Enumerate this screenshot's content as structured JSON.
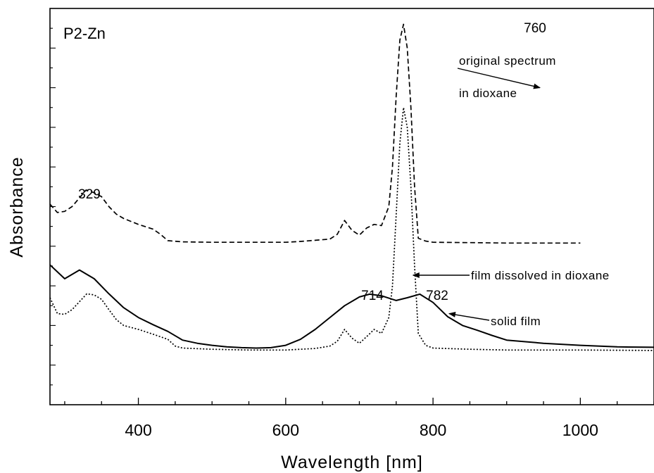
{
  "chart_data": {
    "type": "line",
    "title": "P2-Zn",
    "xlabel": "Wavelength [nm]",
    "ylabel": "Absorbance",
    "xlim": [
      280,
      1100
    ],
    "ylim": [
      0,
      1
    ],
    "x_ticks": [
      400,
      600,
      800,
      1000
    ],
    "x_tick_labels": [
      "400",
      "600",
      "800",
      "1000"
    ],
    "grid": false,
    "legend": "none (curves labeled by annotation arrows)",
    "series": [
      {
        "name": "original spectrum in dioxane",
        "style": "dashed",
        "color": "#000000",
        "x": [
          280,
          290,
          300,
          310,
          320,
          329,
          340,
          350,
          360,
          370,
          380,
          400,
          420,
          430,
          440,
          460,
          500,
          550,
          600,
          620,
          640,
          660,
          670,
          680,
          690,
          700,
          710,
          720,
          730,
          740,
          745,
          750,
          755,
          760,
          765,
          770,
          775,
          780,
          790,
          800,
          850,
          900,
          1000
        ],
        "y": [
          0.506,
          0.485,
          0.488,
          0.5,
          0.522,
          0.542,
          0.535,
          0.525,
          0.5,
          0.481,
          0.47,
          0.455,
          0.443,
          0.43,
          0.414,
          0.411,
          0.41,
          0.41,
          0.41,
          0.412,
          0.415,
          0.418,
          0.43,
          0.465,
          0.44,
          0.428,
          0.446,
          0.455,
          0.452,
          0.5,
          0.6,
          0.78,
          0.92,
          0.96,
          0.9,
          0.75,
          0.55,
          0.42,
          0.413,
          0.41,
          0.409,
          0.408,
          0.408
        ]
      },
      {
        "name": "film dissolved in dioxane",
        "style": "dotted",
        "color": "#000000",
        "x": [
          280,
          290,
          300,
          310,
          320,
          330,
          340,
          350,
          360,
          370,
          380,
          400,
          420,
          440,
          450,
          460,
          500,
          550,
          600,
          620,
          640,
          660,
          670,
          680,
          690,
          700,
          710,
          720,
          730,
          740,
          745,
          750,
          755,
          760,
          765,
          770,
          775,
          780,
          790,
          800,
          850,
          900,
          1000,
          1100
        ],
        "y": [
          0.27,
          0.23,
          0.228,
          0.24,
          0.26,
          0.28,
          0.277,
          0.266,
          0.24,
          0.215,
          0.2,
          0.19,
          0.178,
          0.165,
          0.148,
          0.143,
          0.14,
          0.138,
          0.138,
          0.14,
          0.142,
          0.148,
          0.16,
          0.19,
          0.168,
          0.155,
          0.172,
          0.19,
          0.18,
          0.22,
          0.3,
          0.48,
          0.66,
          0.75,
          0.7,
          0.55,
          0.35,
          0.18,
          0.15,
          0.143,
          0.14,
          0.138,
          0.138,
          0.137
        ]
      },
      {
        "name": "solid film",
        "style": "solid",
        "color": "#000000",
        "x": [
          280,
          300,
          320,
          340,
          360,
          380,
          400,
          420,
          440,
          460,
          480,
          500,
          520,
          540,
          560,
          580,
          600,
          620,
          640,
          660,
          680,
          700,
          714,
          730,
          750,
          765,
          782,
          800,
          820,
          840,
          860,
          880,
          900,
          950,
          1000,
          1050,
          1100
        ],
        "y": [
          0.353,
          0.318,
          0.34,
          0.318,
          0.28,
          0.245,
          0.22,
          0.202,
          0.185,
          0.163,
          0.155,
          0.15,
          0.146,
          0.144,
          0.143,
          0.144,
          0.15,
          0.165,
          0.19,
          0.22,
          0.25,
          0.272,
          0.279,
          0.275,
          0.263,
          0.27,
          0.279,
          0.258,
          0.222,
          0.2,
          0.188,
          0.175,
          0.163,
          0.155,
          0.15,
          0.146,
          0.145
        ]
      }
    ],
    "annotations": [
      {
        "text": "760",
        "x": 760,
        "y": 0.96
      },
      {
        "text": "329",
        "x": 329,
        "y": 0.542
      },
      {
        "text": "714",
        "x": 714,
        "y": 0.279
      },
      {
        "text": "782",
        "x": 782,
        "y": 0.279
      },
      {
        "text": "original spectrum",
        "target_series": 0
      },
      {
        "text": "in dioxane",
        "target_series": 0
      },
      {
        "text": "film dissolved in dioxane",
        "target_series": 1
      },
      {
        "text": "solid film",
        "target_series": 2
      }
    ]
  }
}
